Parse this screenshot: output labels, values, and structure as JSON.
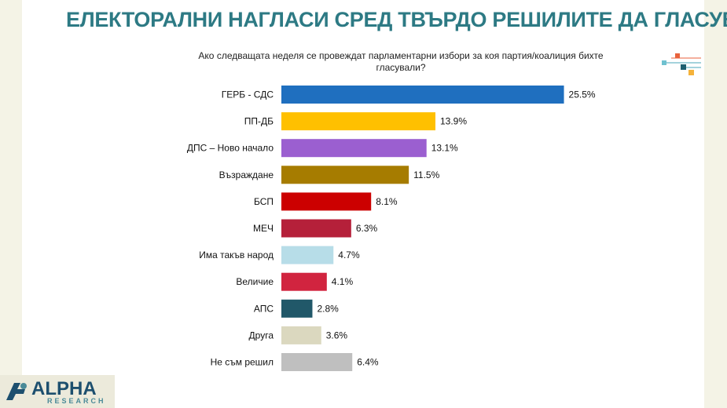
{
  "title": "ЕЛЕКТОРАЛНИ НАГЛАСИ СРЕД ТВЪРДО РЕШИЛИТЕ ДА ГЛАСУВАТ",
  "question": "Ако следващата неделя се провеждат парламентарни избори за коя партия/коалиция бихте гласували?",
  "logo": {
    "main": "ALPHA",
    "sub": "RESEARCH"
  },
  "colors": {
    "background": "#f4f3e6",
    "title": "#2d7a84"
  },
  "chart_data": {
    "type": "bar",
    "orientation": "horizontal",
    "title": "Ако следващата неделя се провеждат парламентарни избори за коя партия/коалиция бихте гласували?",
    "xlabel": "",
    "ylabel": "",
    "xlim": [
      0,
      26
    ],
    "grid": false,
    "legend": "none",
    "categories": [
      "ГЕРБ - СДС",
      "ПП-ДБ",
      "ДПС – Ново начало",
      "Възраждане",
      "БСП",
      "МЕЧ",
      "Има такъв народ",
      "Величие",
      "АПС",
      "Друга",
      "Не съм решил"
    ],
    "values": [
      25.5,
      13.9,
      13.1,
      11.5,
      8.1,
      6.3,
      4.7,
      4.1,
      2.8,
      3.6,
      6.4
    ],
    "value_labels": [
      "25.5%",
      "13.9%",
      "13.1%",
      "11.5%",
      "8.1%",
      "6.3%",
      "4.7%",
      "4.1%",
      "2.8%",
      "3.6%",
      "6.4%"
    ],
    "colors": [
      "#1f6fbf",
      "#ffc000",
      "#9b5fd0",
      "#a67c00",
      "#cc0000",
      "#b5203a",
      "#b7dde8",
      "#d1243f",
      "#215869",
      "#dbd8bf",
      "#bfbfbf"
    ]
  }
}
